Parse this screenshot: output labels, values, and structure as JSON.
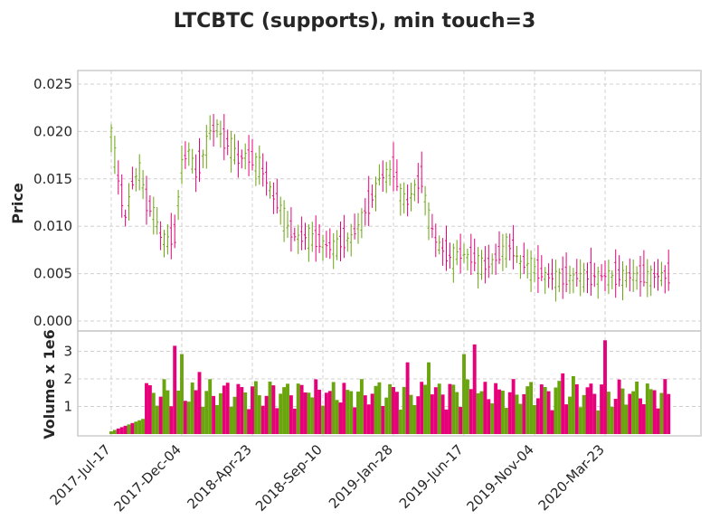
{
  "chart_data": {
    "type": "candlestick-volume",
    "title": "LTCBTC (supports), min touch=3",
    "price_panel": {
      "ylabel": "Price",
      "ylim": [
        0,
        0.0262
      ],
      "yticks": [
        "0.000",
        "0.005",
        "0.010",
        "0.015",
        "0.020",
        "0.025"
      ],
      "ytick_values": [
        0,
        0.005,
        0.01,
        0.015,
        0.02,
        0.025
      ],
      "grid": true
    },
    "volume_panel": {
      "ylabel": "Volume x 1e6",
      "ylim": [
        0,
        3.7
      ],
      "yticks": [
        "1",
        "2",
        "3"
      ],
      "ytick_values": [
        1,
        2,
        3
      ],
      "grid": true
    },
    "x_ticks": [
      {
        "label": "2017-Jul-17",
        "index": 0
      },
      {
        "label": "2017-Dec-04",
        "index": 20
      },
      {
        "label": "2018-Apr-23",
        "index": 40
      },
      {
        "label": "2018-Sep-10",
        "index": 60
      },
      {
        "label": "2019-Jan-28",
        "index": 80
      },
      {
        "label": "2019-Jun-17",
        "index": 100
      },
      {
        "label": "2019-Nov-04",
        "index": 120
      },
      {
        "label": "2020-Mar-23",
        "index": 140
      }
    ],
    "n_periods": 159,
    "up_color": "#6aa50e",
    "down_color": "#e6007a",
    "price_path": [
      [
        0,
        0.02
      ],
      [
        2,
        0.015
      ],
      [
        4,
        0.011
      ],
      [
        6,
        0.0145
      ],
      [
        8,
        0.016
      ],
      [
        10,
        0.0125
      ],
      [
        12,
        0.0115
      ],
      [
        14,
        0.009
      ],
      [
        16,
        0.0085
      ],
      [
        18,
        0.009
      ],
      [
        20,
        0.0165
      ],
      [
        22,
        0.018
      ],
      [
        24,
        0.0155
      ],
      [
        26,
        0.0175
      ],
      [
        28,
        0.02
      ],
      [
        30,
        0.0205
      ],
      [
        32,
        0.019
      ],
      [
        34,
        0.0185
      ],
      [
        36,
        0.017
      ],
      [
        38,
        0.0175
      ],
      [
        40,
        0.017
      ],
      [
        42,
        0.0165
      ],
      [
        44,
        0.015
      ],
      [
        46,
        0.013
      ],
      [
        48,
        0.012
      ],
      [
        50,
        0.01
      ],
      [
        52,
        0.009
      ],
      [
        54,
        0.0088
      ],
      [
        56,
        0.009
      ],
      [
        58,
        0.0085
      ],
      [
        60,
        0.0082
      ],
      [
        62,
        0.0078
      ],
      [
        64,
        0.008
      ],
      [
        66,
        0.0085
      ],
      [
        68,
        0.0088
      ],
      [
        70,
        0.01
      ],
      [
        72,
        0.0115
      ],
      [
        74,
        0.013
      ],
      [
        76,
        0.015
      ],
      [
        78,
        0.0155
      ],
      [
        80,
        0.016
      ],
      [
        82,
        0.0135
      ],
      [
        84,
        0.0125
      ],
      [
        86,
        0.014
      ],
      [
        88,
        0.015
      ],
      [
        90,
        0.011
      ],
      [
        92,
        0.0085
      ],
      [
        94,
        0.0075
      ],
      [
        96,
        0.0068
      ],
      [
        98,
        0.007
      ],
      [
        100,
        0.007
      ],
      [
        102,
        0.0068
      ],
      [
        104,
        0.0062
      ],
      [
        106,
        0.0058
      ],
      [
        108,
        0.0063
      ],
      [
        110,
        0.007
      ],
      [
        112,
        0.008
      ],
      [
        114,
        0.0075
      ],
      [
        116,
        0.0062
      ],
      [
        118,
        0.006
      ],
      [
        120,
        0.0055
      ],
      [
        122,
        0.005
      ],
      [
        124,
        0.0047
      ],
      [
        126,
        0.0046
      ],
      [
        128,
        0.0045
      ],
      [
        130,
        0.0046
      ],
      [
        132,
        0.0047
      ],
      [
        158,
        0.0048
      ]
    ],
    "volume_highlights": [
      [
        18,
        3.2
      ],
      [
        20,
        2.9
      ],
      [
        25,
        2.25
      ],
      [
        56,
        1.5
      ],
      [
        84,
        2.6
      ],
      [
        90,
        2.6
      ],
      [
        100,
        2.9
      ],
      [
        103,
        3.25
      ],
      [
        128,
        2.2
      ],
      [
        131,
        2.1
      ],
      [
        140,
        3.4
      ]
    ]
  }
}
